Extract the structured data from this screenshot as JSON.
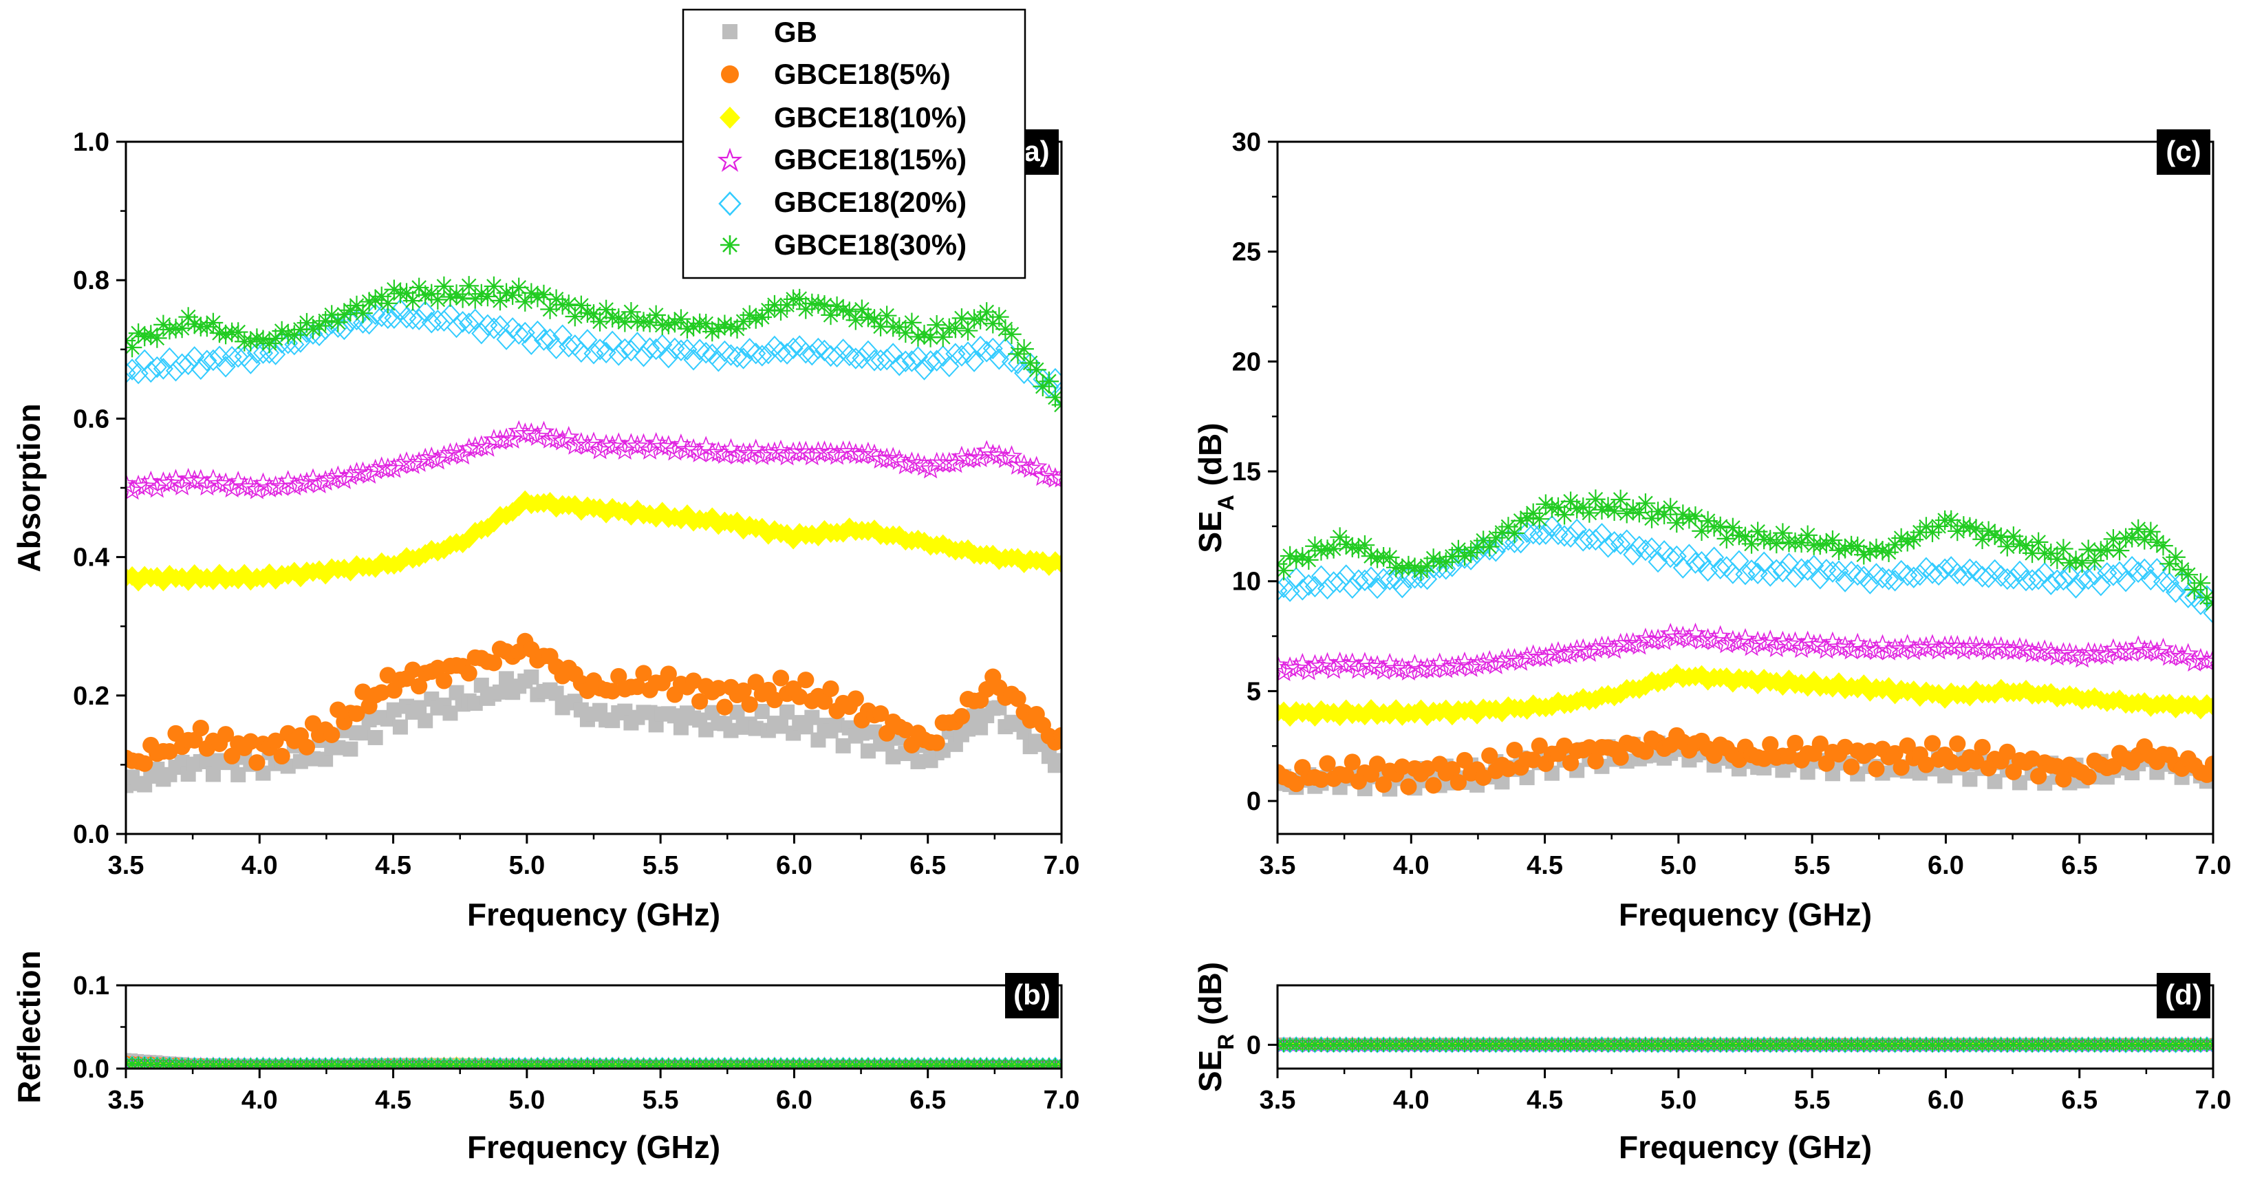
{
  "chart_data": [
    {
      "id": "a",
      "type": "scatter",
      "panel_label": "(a)",
      "xlabel": "Frequency (GHz)",
      "ylabel": "Absorption",
      "xlim": [
        3.5,
        7.0
      ],
      "ylim": [
        0.0,
        1.0
      ],
      "xticks": [
        3.5,
        4.0,
        4.5,
        5.0,
        5.5,
        6.0,
        6.5,
        7.0
      ],
      "yticks": [
        0.0,
        0.2,
        0.4,
        0.6,
        0.8,
        1.0
      ],
      "x": [
        3.5,
        3.75,
        4.0,
        4.25,
        4.5,
        4.75,
        5.0,
        5.25,
        5.5,
        5.75,
        6.0,
        6.25,
        6.5,
        6.75,
        7.0
      ],
      "series": [
        {
          "name": "GB",
          "values": [
            0.07,
            0.1,
            0.1,
            0.12,
            0.17,
            0.19,
            0.22,
            0.17,
            0.17,
            0.16,
            0.16,
            0.14,
            0.11,
            0.18,
            0.1
          ]
        },
        {
          "name": "GBCE18(5%)",
          "values": [
            0.1,
            0.14,
            0.12,
            0.15,
            0.22,
            0.24,
            0.27,
            0.21,
            0.22,
            0.2,
            0.21,
            0.18,
            0.13,
            0.22,
            0.13
          ]
        },
        {
          "name": "GBCE18(10%)",
          "values": [
            0.37,
            0.37,
            0.37,
            0.38,
            0.39,
            0.42,
            0.48,
            0.47,
            0.46,
            0.45,
            0.43,
            0.44,
            0.42,
            0.4,
            0.39
          ]
        },
        {
          "name": "GBCE18(15%)",
          "values": [
            0.5,
            0.51,
            0.5,
            0.51,
            0.53,
            0.55,
            0.58,
            0.56,
            0.56,
            0.55,
            0.55,
            0.55,
            0.53,
            0.55,
            0.51
          ]
        },
        {
          "name": "GBCE18(20%)",
          "values": [
            0.67,
            0.68,
            0.69,
            0.73,
            0.75,
            0.74,
            0.72,
            0.7,
            0.7,
            0.69,
            0.7,
            0.69,
            0.68,
            0.7,
            0.64
          ]
        },
        {
          "name": "GBCE18(30%)",
          "values": [
            0.71,
            0.74,
            0.71,
            0.74,
            0.78,
            0.78,
            0.78,
            0.75,
            0.74,
            0.73,
            0.77,
            0.75,
            0.72,
            0.75,
            0.62
          ]
        }
      ]
    },
    {
      "id": "b",
      "type": "scatter",
      "panel_label": "(b)",
      "xlabel": "Frequency (GHz)",
      "ylabel": "Reflection",
      "xlim": [
        3.5,
        7.0
      ],
      "ylim": [
        0.0,
        0.1
      ],
      "xticks": [
        3.5,
        4.0,
        4.5,
        5.0,
        5.5,
        6.0,
        6.5,
        7.0
      ],
      "yticks": [
        0.0,
        0.1
      ],
      "x": [
        3.5,
        3.75,
        4.0,
        4.25,
        4.5,
        4.75,
        5.0,
        5.25,
        5.5,
        5.75,
        6.0,
        6.25,
        6.5,
        6.75,
        7.0
      ],
      "series": [
        {
          "name": "GB",
          "values": [
            0.012,
            0.006,
            0.005,
            0.005,
            0.006,
            0.006,
            0.005,
            0.005,
            0.004,
            0.004,
            0.004,
            0.004,
            0.004,
            0.004,
            0.004
          ]
        },
        {
          "name": "GBCE18(5%)",
          "values": [
            0.008,
            0.005,
            0.004,
            0.004,
            0.005,
            0.005,
            0.004,
            0.004,
            0.004,
            0.004,
            0.004,
            0.004,
            0.004,
            0.004,
            0.004
          ]
        },
        {
          "name": "GBCE18(10%)",
          "values": [
            0.007,
            0.005,
            0.004,
            0.004,
            0.005,
            0.006,
            0.004,
            0.004,
            0.004,
            0.004,
            0.004,
            0.004,
            0.004,
            0.004,
            0.004
          ]
        },
        {
          "name": "GBCE18(15%)",
          "values": [
            0.006,
            0.004,
            0.004,
            0.004,
            0.004,
            0.004,
            0.004,
            0.004,
            0.004,
            0.004,
            0.004,
            0.004,
            0.004,
            0.004,
            0.004
          ]
        },
        {
          "name": "GBCE18(20%)",
          "values": [
            0.006,
            0.004,
            0.004,
            0.004,
            0.004,
            0.004,
            0.004,
            0.004,
            0.004,
            0.004,
            0.004,
            0.004,
            0.004,
            0.004,
            0.004
          ]
        },
        {
          "name": "GBCE18(30%)",
          "values": [
            0.006,
            0.004,
            0.004,
            0.004,
            0.004,
            0.004,
            0.004,
            0.004,
            0.004,
            0.004,
            0.004,
            0.004,
            0.004,
            0.004,
            0.004
          ]
        }
      ]
    },
    {
      "id": "c",
      "type": "scatter",
      "panel_label": "(c)",
      "xlabel": "Frequency (GHz)",
      "ylabel_main": "SE",
      "ylabel_sub": "A",
      "ylabel_unit": " (dB)",
      "xlim": [
        3.5,
        7.0
      ],
      "ylim": [
        -1.5,
        30
      ],
      "xticks": [
        3.5,
        4.0,
        4.5,
        5.0,
        5.5,
        6.0,
        6.5,
        7.0
      ],
      "yticks": [
        0,
        5,
        10,
        15,
        20,
        25,
        30
      ],
      "x": [
        3.5,
        3.75,
        4.0,
        4.25,
        4.5,
        4.75,
        5.0,
        5.25,
        5.5,
        5.75,
        6.0,
        6.25,
        6.5,
        6.75,
        7.0
      ],
      "series": [
        {
          "name": "GB",
          "values": [
            0.8,
            1.0,
            1.0,
            1.1,
            1.8,
            2.0,
            2.3,
            1.7,
            1.7,
            1.6,
            1.6,
            1.4,
            1.1,
            1.8,
            1.1
          ]
        },
        {
          "name": "GBCE18(5%)",
          "values": [
            1.0,
            1.3,
            1.2,
            1.4,
            2.1,
            2.3,
            2.7,
            2.1,
            2.2,
            2.0,
            2.1,
            1.8,
            1.3,
            2.2,
            1.3
          ]
        },
        {
          "name": "GBCE18(10%)",
          "values": [
            4.0,
            4.0,
            4.0,
            4.1,
            4.3,
            4.8,
            5.7,
            5.5,
            5.3,
            5.1,
            4.8,
            5.0,
            4.7,
            4.4,
            4.3
          ]
        },
        {
          "name": "GBCE18(15%)",
          "values": [
            6.0,
            6.2,
            6.0,
            6.2,
            6.6,
            7.0,
            7.5,
            7.2,
            7.1,
            6.9,
            7.0,
            6.9,
            6.6,
            6.9,
            6.3
          ]
        },
        {
          "name": "GBCE18(20%)",
          "values": [
            9.7,
            10.0,
            10.0,
            11.3,
            12.3,
            11.8,
            11.0,
            10.5,
            10.5,
            10.1,
            10.5,
            10.2,
            10.0,
            10.5,
            8.8
          ]
        },
        {
          "name": "GBCE18(30%)",
          "values": [
            10.7,
            11.8,
            10.5,
            11.5,
            13.3,
            13.4,
            13.0,
            12.0,
            11.8,
            11.3,
            12.7,
            11.8,
            10.9,
            12.3,
            9.0
          ]
        }
      ]
    },
    {
      "id": "d",
      "type": "scatter",
      "panel_label": "(d)",
      "xlabel": "Frequency (GHz)",
      "ylabel_main": "SE",
      "ylabel_sub": "R",
      "ylabel_unit": " (dB)",
      "xlim": [
        3.5,
        7.0
      ],
      "ylim": [
        -0.4,
        1.0
      ],
      "xticks": [
        3.5,
        4.0,
        4.5,
        5.0,
        5.5,
        6.0,
        6.5,
        7.0
      ],
      "yticks": [
        0
      ],
      "x": [
        3.5,
        3.75,
        4.0,
        4.25,
        4.5,
        4.75,
        5.0,
        5.25,
        5.5,
        5.75,
        6.0,
        6.25,
        6.5,
        6.75,
        7.0
      ],
      "series": [
        {
          "name": "GB",
          "values": [
            0.03,
            0.02,
            0.02,
            0.02,
            0.02,
            0.02,
            0.02,
            0.02,
            0.02,
            0.02,
            0.02,
            0.02,
            0.02,
            0.02,
            0.02
          ]
        },
        {
          "name": "GBCE18(5%)",
          "values": [
            0.01,
            0.01,
            0.01,
            0.01,
            0.01,
            0.01,
            0.01,
            0.01,
            0.01,
            0.01,
            0.01,
            0.01,
            0.01,
            0.01,
            0.01
          ]
        },
        {
          "name": "GBCE18(10%)",
          "values": [
            0.01,
            0.01,
            0.01,
            0.01,
            0.01,
            0.01,
            0.01,
            0.01,
            0.01,
            0.01,
            0.01,
            0.01,
            0.01,
            0.01,
            0.01
          ]
        },
        {
          "name": "GBCE18(15%)",
          "values": [
            0.0,
            0.0,
            0.0,
            0.0,
            0.0,
            0.0,
            0.0,
            0.0,
            0.0,
            0.0,
            0.0,
            0.0,
            0.0,
            0.0,
            0.0
          ]
        },
        {
          "name": "GBCE18(20%)",
          "values": [
            0.0,
            0.0,
            0.0,
            0.0,
            0.0,
            0.0,
            0.0,
            0.0,
            0.0,
            0.0,
            0.0,
            0.0,
            0.0,
            0.0,
            0.0
          ]
        },
        {
          "name": "GBCE18(30%)",
          "values": [
            0.0,
            0.0,
            0.0,
            0.0,
            0.0,
            0.0,
            0.0,
            0.0,
            0.0,
            0.0,
            0.0,
            0.0,
            0.0,
            0.0,
            0.0
          ]
        }
      ]
    }
  ],
  "legend": {
    "placement": "top-center",
    "entries": [
      {
        "label": "GB",
        "marker": "square-icon",
        "color": "#BDBDBD"
      },
      {
        "label": "GBCE18(5%)",
        "marker": "circle-icon",
        "color": "#FF7F0E"
      },
      {
        "label": "GBCE18(10%)",
        "marker": "diamond-icon",
        "color": "#FFFF00"
      },
      {
        "label": "GBCE18(15%)",
        "marker": "star-icon",
        "color": "#E020E0"
      },
      {
        "label": "GBCE18(20%)",
        "marker": "open-diamond-icon",
        "color": "#33CCFF"
      },
      {
        "label": "GBCE18(30%)",
        "marker": "asterisk-icon",
        "color": "#22CC22"
      }
    ]
  }
}
